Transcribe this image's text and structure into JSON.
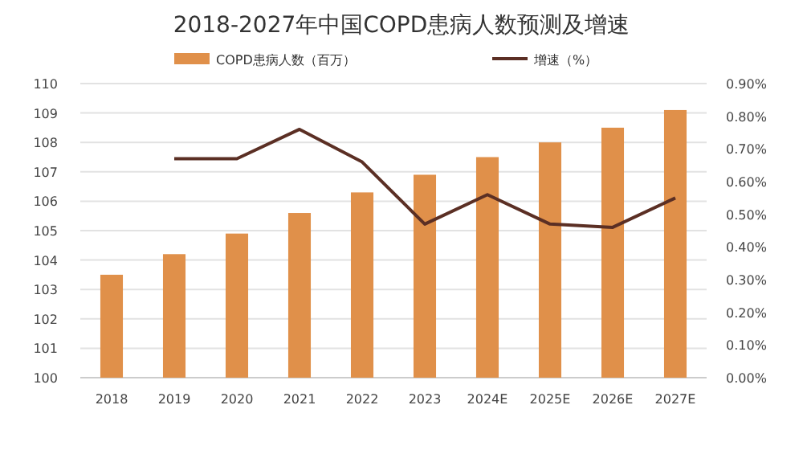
{
  "chart_data": {
    "type": "bar",
    "title": "2018-2027年中国COPD患病人数预测及增速",
    "categories": [
      "2018",
      "2019",
      "2020",
      "2021",
      "2022",
      "2023",
      "2024E",
      "2025E",
      "2026E",
      "2027E"
    ],
    "series": [
      {
        "name": "COPD患病人数（百万）",
        "color": "#e0904a",
        "values": [
          103.5,
          104.2,
          104.9,
          105.6,
          106.3,
          106.9,
          107.5,
          108.0,
          108.5,
          109.1
        ]
      },
      {
        "name": "增速（%）",
        "type": "line",
        "axis": "y2",
        "color": "#5b2f24",
        "values": [
          null,
          0.67,
          0.67,
          0.76,
          0.66,
          0.47,
          0.56,
          0.47,
          0.46,
          0.55
        ]
      }
    ],
    "ylim": [
      100,
      110
    ],
    "yticks": [
      100,
      101,
      102,
      103,
      104,
      105,
      106,
      107,
      108,
      109,
      110
    ],
    "y2lim": [
      0,
      0.9
    ],
    "y2ticks": [
      {
        "value": 0,
        "label": "0.00%"
      },
      {
        "value": 0.1,
        "label": "0.10%"
      },
      {
        "value": 0.2,
        "label": "0.20%"
      },
      {
        "value": 0.3,
        "label": "0.30%"
      },
      {
        "value": 0.4,
        "label": "0.40%"
      },
      {
        "value": 0.5,
        "label": "0.50%"
      },
      {
        "value": 0.6,
        "label": "0.60%"
      },
      {
        "value": 0.7,
        "label": "0.70%"
      },
      {
        "value": 0.8,
        "label": "0.80%"
      },
      {
        "value": 0.9,
        "label": "0.90%"
      }
    ],
    "grid": "y",
    "legend": "top",
    "marker": "none",
    "line_style": "solid"
  }
}
